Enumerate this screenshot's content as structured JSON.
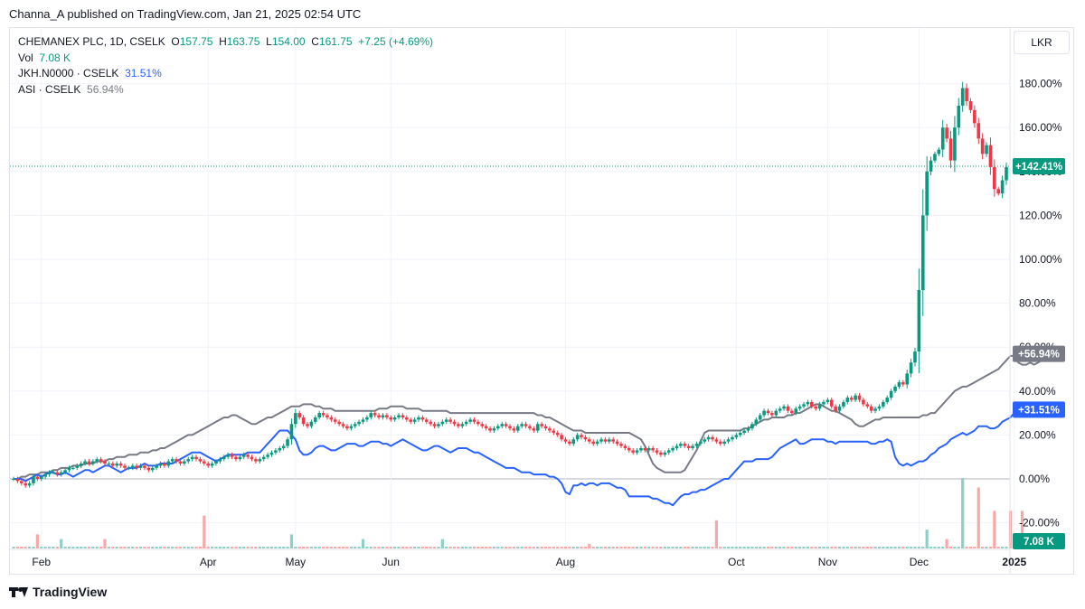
{
  "header": {
    "published": "Channa_A published on TradingView.com, Jan 21, 2025 02:54 UTC"
  },
  "legend": {
    "symbol": "CHEMANEX PLC, 1D, CSELK",
    "o_label": "O",
    "o": "157.75",
    "h_label": "H",
    "h": "163.75",
    "l_label": "L",
    "l": "154.00",
    "c_label": "C",
    "c": "161.75",
    "change": "+7.25 (+4.69%)",
    "vol_label": "Vol",
    "vol": "7.08 K",
    "cmp1_label": "JKH.N0000 · CSELK",
    "cmp1": "31.51%",
    "cmp2_label": "ASI · CSELK",
    "cmp2": "56.94%"
  },
  "currency_button": "LKR",
  "brand": "TradingView",
  "colors": {
    "up": "#089981",
    "down": "#f23645",
    "vol_up": "#8fd0c6",
    "vol_down": "#f7a9a7",
    "jkh": "#2962ff",
    "asi": "#787b86",
    "zero": "#b2b5be"
  },
  "chart_data": {
    "type": "line",
    "main_series_type": "candlestick",
    "scale": "percent",
    "yticks": [
      "180.00%",
      "160.00%",
      "140.00%",
      "120.00%",
      "100.00%",
      "80.00%",
      "60.00%",
      "40.00%",
      "20.00%",
      "0.00%",
      "-20.00%"
    ],
    "ytick_values": [
      180,
      160,
      140,
      120,
      100,
      80,
      60,
      40,
      20,
      0,
      -20
    ],
    "xtick_labels": [
      "Feb",
      "Apr",
      "May",
      "Jun",
      "Aug",
      "Oct",
      "Nov",
      "Dec",
      "2025"
    ],
    "xtick_index": [
      7,
      49,
      71,
      95,
      139,
      182,
      205,
      228,
      252
    ],
    "ylim": [
      -30,
      190
    ],
    "badges": {
      "main": "+142.41%",
      "main_value": 142.41,
      "asi": "+56.94%",
      "asi_value": 56.94,
      "jkh": "+31.51%",
      "jkh_value": 31.51,
      "vol": "7.08 K"
    },
    "candles_close": [
      0,
      -1,
      -2,
      -3,
      -2,
      1,
      0,
      1,
      2,
      3,
      3,
      2,
      3,
      4,
      5,
      5,
      6,
      7,
      8,
      7,
      8,
      9,
      8,
      7,
      7,
      6,
      7,
      6,
      5,
      5,
      6,
      5,
      6,
      5,
      4,
      5,
      6,
      7,
      6,
      8,
      9,
      8,
      7,
      8,
      9,
      10,
      9,
      8,
      7,
      6,
      7,
      8,
      9,
      10,
      11,
      10,
      9,
      10,
      11,
      10,
      9,
      8,
      9,
      10,
      11,
      12,
      13,
      14,
      15,
      18,
      25,
      30,
      28,
      25,
      24,
      26,
      28,
      30,
      29,
      28,
      27,
      26,
      25,
      24,
      23,
      24,
      25,
      26,
      27,
      28,
      30,
      29,
      28,
      29,
      28,
      27,
      28,
      29,
      28,
      27,
      26,
      27,
      28,
      27,
      26,
      25,
      24,
      25,
      26,
      27,
      26,
      25,
      24,
      25,
      26,
      27,
      26,
      25,
      24,
      23,
      22,
      23,
      24,
      25,
      24,
      23,
      22,
      24,
      25,
      24,
      23,
      22,
      25,
      24,
      23,
      22,
      21,
      20,
      18,
      17,
      16,
      18,
      20,
      19,
      18,
      17,
      16,
      17,
      18,
      17,
      18,
      17,
      16,
      15,
      14,
      13,
      12,
      13,
      14,
      13,
      14,
      13,
      12,
      11,
      12,
      13,
      14,
      15,
      16,
      15,
      14,
      15,
      16,
      17,
      18,
      19,
      18,
      17,
      16,
      17,
      18,
      19,
      20,
      21,
      22,
      23,
      25,
      27,
      29,
      31,
      30,
      29,
      31,
      32,
      33,
      31,
      30,
      32,
      33,
      34,
      35,
      33,
      32,
      34,
      35,
      36,
      33,
      31,
      33,
      35,
      37,
      36,
      38,
      36,
      34,
      33,
      31,
      32,
      33,
      35,
      37,
      40,
      42,
      44,
      43,
      48,
      53,
      58,
      86,
      120,
      140,
      145,
      148,
      150,
      160,
      155,
      145,
      160,
      170,
      178,
      172,
      168,
      162,
      155,
      148,
      152,
      142,
      132,
      130,
      136,
      142
    ],
    "asi_values": [
      0,
      0,
      1,
      1,
      2,
      2,
      2,
      3,
      3,
      3,
      4,
      4,
      5,
      5,
      5,
      6,
      6,
      6,
      7,
      7,
      7,
      8,
      8,
      8,
      9,
      9,
      10,
      10,
      10,
      11,
      11,
      11,
      12,
      12,
      12,
      13,
      13,
      14,
      14,
      15,
      16,
      17,
      18,
      19,
      20,
      20,
      21,
      22,
      23,
      24,
      25,
      26,
      27,
      28,
      28,
      29,
      29,
      28,
      27,
      26,
      25,
      25,
      26,
      27,
      28,
      28,
      29,
      30,
      31,
      32,
      33,
      33,
      33,
      34,
      34,
      34,
      33,
      33,
      32,
      32,
      32,
      31,
      31,
      31,
      31,
      31,
      31,
      31,
      31,
      31,
      31,
      31,
      32,
      32,
      32,
      33,
      33,
      33,
      33,
      32,
      32,
      32,
      32,
      31,
      31,
      31,
      31,
      31,
      31,
      31,
      30,
      30,
      30,
      30,
      30,
      30,
      30,
      30,
      30,
      30,
      30,
      30,
      30,
      30,
      30,
      30,
      30,
      30,
      30,
      30,
      30,
      30,
      29,
      29,
      28,
      28,
      27,
      26,
      25,
      24,
      23,
      22,
      22,
      22,
      21,
      21,
      21,
      21,
      21,
      21,
      21,
      21,
      21,
      21,
      21,
      21,
      20,
      19,
      18,
      15,
      11,
      7,
      5,
      4,
      3,
      3,
      3,
      3,
      3,
      4,
      7,
      10,
      13,
      17,
      21,
      22,
      22,
      22,
      22,
      22,
      22,
      22,
      22,
      22,
      23,
      23,
      24,
      25,
      26,
      27,
      27,
      28,
      28,
      28,
      28,
      29,
      29,
      30,
      30,
      31,
      32,
      33,
      34,
      34,
      33,
      32,
      31,
      31,
      30,
      29,
      28,
      27,
      25,
      24,
      24,
      25,
      26,
      27,
      27,
      28,
      28,
      28,
      28,
      28,
      28,
      28,
      28,
      28,
      28,
      29,
      29,
      30,
      30,
      32,
      34,
      36,
      38,
      40,
      41,
      42,
      42,
      43,
      44,
      45,
      46,
      47,
      48,
      49,
      50,
      52,
      54,
      56,
      56,
      53,
      52,
      52,
      53,
      52,
      53,
      54,
      55,
      56,
      57
    ],
    "jkh_values": [
      0,
      0,
      0,
      -1,
      0,
      1,
      2,
      1,
      2,
      3,
      3,
      2,
      2,
      3,
      2,
      1,
      2,
      3,
      4,
      4,
      3,
      4,
      5,
      6,
      6,
      5,
      4,
      3,
      4,
      5,
      5,
      5,
      6,
      7,
      6,
      6,
      6,
      7,
      7,
      7,
      7,
      8,
      9,
      10,
      11,
      12,
      12,
      12,
      11,
      10,
      9,
      8,
      9,
      10,
      11,
      11,
      11,
      11,
      11,
      12,
      12,
      12,
      12,
      14,
      16,
      18,
      20,
      22,
      22,
      22,
      20,
      18,
      13,
      11,
      11,
      12,
      14,
      15,
      15,
      14,
      13,
      13,
      14,
      15,
      16,
      16,
      16,
      15,
      15,
      16,
      17,
      17,
      17,
      16,
      16,
      15,
      16,
      17,
      18,
      17,
      16,
      15,
      14,
      13,
      13,
      14,
      15,
      15,
      14,
      13,
      12,
      13,
      14,
      14,
      14,
      13,
      12,
      12,
      11,
      10,
      9,
      8,
      7,
      6,
      5,
      5,
      5,
      4,
      3,
      3,
      3,
      2,
      2,
      2,
      2,
      1,
      1,
      0,
      -2,
      -6,
      -7,
      -3,
      -3,
      -2,
      -3,
      -2,
      -2,
      -3,
      -2,
      -2,
      -2,
      -3,
      -4,
      -4,
      -5,
      -8,
      -8,
      -8,
      -8,
      -8,
      -8,
      -9,
      -9,
      -10,
      -11,
      -11,
      -12,
      -10,
      -8,
      -7,
      -7,
      -6,
      -6,
      -5,
      -5,
      -4,
      -3,
      -2,
      -1,
      0,
      0,
      2,
      4,
      6,
      8,
      8,
      8,
      9,
      9,
      9,
      9,
      10,
      12,
      14,
      15,
      16,
      17,
      18,
      16,
      16,
      17,
      18,
      18,
      18,
      18,
      17,
      17,
      16,
      17,
      17,
      17,
      17,
      17,
      17,
      17,
      17,
      16,
      16,
      17,
      17,
      18,
      17,
      10,
      7,
      6,
      7,
      6,
      7,
      8,
      8,
      9,
      11,
      12,
      14,
      15,
      16,
      18,
      19,
      20,
      21,
      20,
      21,
      22,
      24,
      24,
      24,
      23,
      23,
      24,
      26,
      27,
      28,
      30,
      32,
      32,
      31,
      32,
      32,
      32,
      31,
      31,
      31
    ],
    "volume_indices": [
      6,
      12,
      23,
      48,
      70,
      88,
      108,
      145,
      177,
      230,
      235,
      239,
      243,
      247,
      251,
      254
    ],
    "volume_values": [
      3,
      2,
      2,
      7,
      3,
      2,
      2,
      1,
      6,
      4,
      2,
      15,
      13,
      8,
      8,
      8
    ]
  }
}
